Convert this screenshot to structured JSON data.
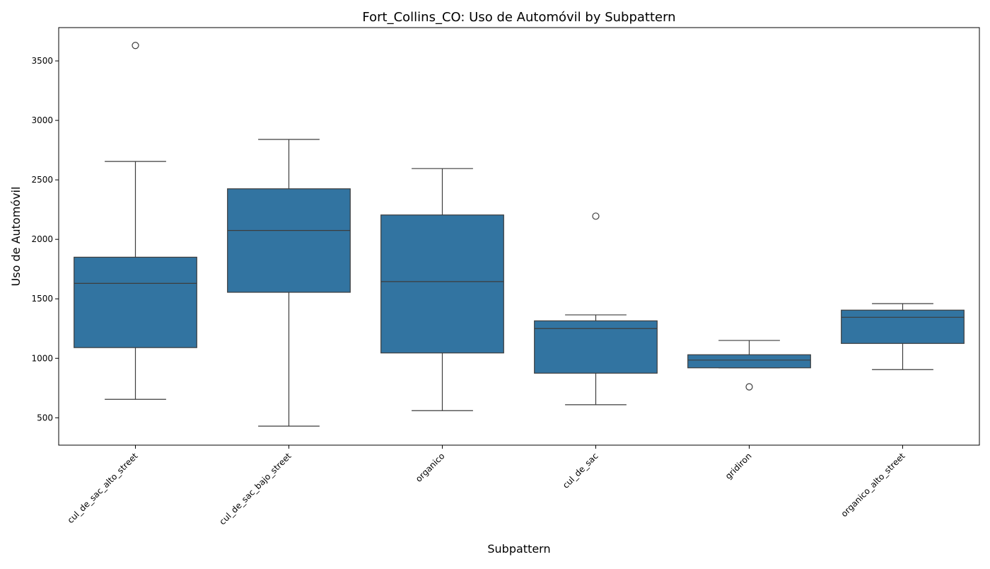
{
  "chart_data": {
    "type": "box",
    "title": "Fort_Collins_CO: Uso de Automóvil by Subpattern",
    "xlabel": "Subpattern",
    "ylabel": "Uso de Automóvil",
    "ylim": [
      270,
      3780
    ],
    "yticks": [
      500,
      1000,
      1500,
      2000,
      2500,
      3000,
      3500
    ],
    "grid": false,
    "box_color": "#3274a1",
    "line_color": "#3d3d3d",
    "categories": [
      "cul_de_sac_alto_street",
      "cul_de_sac_bajo_street",
      "organico",
      "cul_de_sac",
      "gridiron",
      "organico_alto_street"
    ],
    "boxes": [
      {
        "category": "cul_de_sac_alto_street",
        "whisker_low": 655,
        "q1": 1090,
        "median": 1630,
        "q3": 1850,
        "whisker_high": 2655,
        "outliers": [
          3630
        ]
      },
      {
        "category": "cul_de_sac_bajo_street",
        "whisker_low": 430,
        "q1": 1555,
        "median": 2075,
        "q3": 2425,
        "whisker_high": 2840,
        "outliers": []
      },
      {
        "category": "organico",
        "whisker_low": 560,
        "q1": 1045,
        "median": 1645,
        "q3": 2205,
        "whisker_high": 2595,
        "outliers": []
      },
      {
        "category": "cul_de_sac",
        "whisker_low": 610,
        "q1": 875,
        "median": 1250,
        "q3": 1315,
        "whisker_high": 1365,
        "outliers": [
          2195
        ]
      },
      {
        "category": "gridiron",
        "whisker_low": 920,
        "q1": 920,
        "median": 985,
        "q3": 1030,
        "whisker_high": 1150,
        "outliers": [
          760
        ]
      },
      {
        "category": "organico_alto_street",
        "whisker_low": 905,
        "q1": 1125,
        "median": 1345,
        "q3": 1405,
        "whisker_high": 1460,
        "outliers": []
      }
    ]
  }
}
